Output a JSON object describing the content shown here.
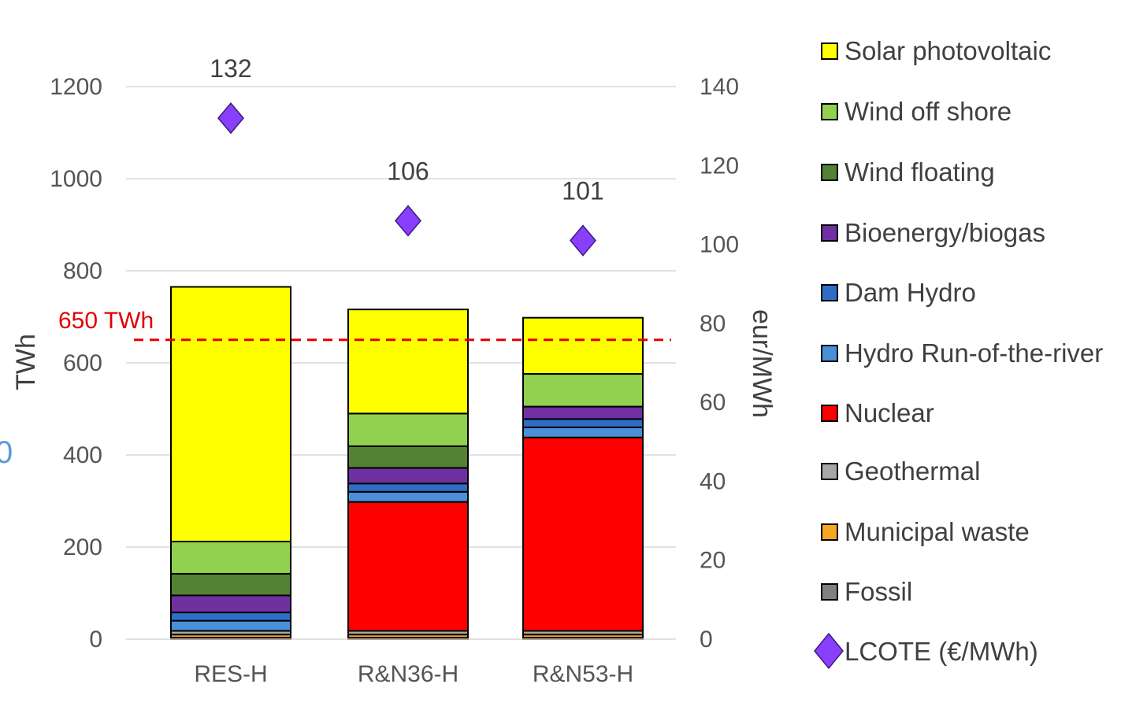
{
  "chart_data": {
    "type": "bar",
    "stacked": true,
    "categories": [
      "RES-H",
      "R&N36-H",
      "R&N53-H"
    ],
    "ylabel": "TWh",
    "ylim": [
      0,
      1200
    ],
    "yticks": [
      0,
      200,
      400,
      600,
      800,
      1000,
      1200
    ],
    "y2label": "eur/MWh",
    "y2lim": [
      0,
      140
    ],
    "y2ticks": [
      0,
      20,
      40,
      60,
      80,
      100,
      120,
      140
    ],
    "grid": true,
    "legend_position": "right",
    "series": [
      {
        "name": "Fossil",
        "color": "#808080",
        "values": [
          3,
          3,
          3
        ]
      },
      {
        "name": "Municipal waste",
        "color": "#f5a623",
        "values": [
          7,
          7,
          7
        ]
      },
      {
        "name": "Geothermal",
        "color": "#a6a6a6",
        "values": [
          8,
          8,
          8
        ]
      },
      {
        "name": "Nuclear",
        "color": "#ff0000",
        "values": [
          0,
          280,
          420
        ]
      },
      {
        "name": "Hydro Run-of-the-river",
        "color": "#4a90d9",
        "values": [
          22,
          22,
          22
        ]
      },
      {
        "name": "Dam Hydro",
        "color": "#2f6ec7",
        "values": [
          18,
          18,
          18
        ]
      },
      {
        "name": "Bioenergy/biogas",
        "color": "#7030a0",
        "values": [
          37,
          34,
          27
        ]
      },
      {
        "name": "Wind floating",
        "color": "#548235",
        "values": [
          47,
          47,
          0
        ]
      },
      {
        "name": "Wind off shore",
        "color": "#92d050",
        "values": [
          70,
          71,
          71
        ]
      },
      {
        "name": "Solar photovoltaic",
        "color": "#ffff00",
        "values": [
          553,
          226,
          122
        ]
      }
    ],
    "line_series": {
      "name": "LCOTE (€/MWh)",
      "axis": "right",
      "marker": "diamond",
      "color": "#8a3ffc",
      "values": [
        132,
        106,
        101
      ],
      "labels": [
        "132",
        "106",
        "101"
      ]
    },
    "reference_line": {
      "value": 650,
      "label": "650 TWh",
      "color": "#e00000",
      "style": "dashed"
    },
    "legend_order": [
      "Solar photovoltaic",
      "Wind off shore",
      "Wind floating",
      "Bioenergy/biogas",
      "Dam Hydro",
      "Hydro Run-of-the-river",
      "Nuclear",
      "Geothermal",
      "Municipal waste",
      "Fossil",
      "LCOTE (€/MWh)"
    ],
    "edge_label": "0"
  }
}
